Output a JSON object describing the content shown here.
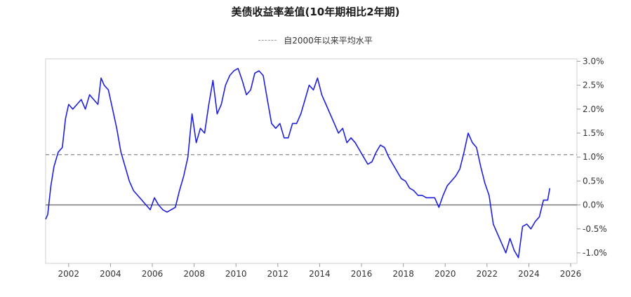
{
  "chart_data": {
    "type": "line",
    "title": "美债收益率差值(10年期相比2年期)",
    "legend": {
      "position": "top-center",
      "entries": [
        {
          "label": "自2000年以来平均水平",
          "style": "dashed",
          "color": "#9a9a9a"
        }
      ]
    },
    "xlabel": "",
    "ylabel": "",
    "x_ticks": [
      "2002",
      "2004",
      "2006",
      "2008",
      "2010",
      "2012",
      "2014",
      "2016",
      "2018",
      "2020",
      "2022",
      "2024",
      "2026"
    ],
    "y_ticks": [
      "3.0%",
      "2.5%",
      "2.0%",
      "1.5%",
      "1.0%",
      "0.5%",
      "0.0%",
      "-0.5%",
      "-1.0%"
    ],
    "xlim": [
      2000.9,
      2026.3
    ],
    "ylim": [
      -1.22,
      3.05
    ],
    "grid": false,
    "zero_line": 0.0,
    "average_line": {
      "name": "自2000年以来平均水平",
      "value": 1.05,
      "color": "#9a9a9a"
    },
    "series": [
      {
        "color": "#1f1fe0",
        "x": [
          2000.9,
          2001.0,
          2001.15,
          2001.3,
          2001.5,
          2001.7,
          2001.85,
          2002.0,
          2002.2,
          2002.4,
          2002.6,
          2002.8,
          2003.0,
          2003.2,
          2003.4,
          2003.55,
          2003.7,
          2003.9,
          2004.1,
          2004.3,
          2004.5,
          2004.7,
          2004.9,
          2005.1,
          2005.3,
          2005.5,
          2005.7,
          2005.9,
          2006.1,
          2006.3,
          2006.5,
          2006.7,
          2006.9,
          2007.1,
          2007.3,
          2007.5,
          2007.7,
          2007.9,
          2008.1,
          2008.3,
          2008.5,
          2008.7,
          2008.9,
          2009.1,
          2009.3,
          2009.5,
          2009.7,
          2009.9,
          2010.1,
          2010.3,
          2010.5,
          2010.7,
          2010.9,
          2011.1,
          2011.3,
          2011.5,
          2011.7,
          2011.9,
          2012.1,
          2012.3,
          2012.5,
          2012.7,
          2012.9,
          2013.1,
          2013.3,
          2013.5,
          2013.7,
          2013.9,
          2014.1,
          2014.3,
          2014.5,
          2014.7,
          2014.9,
          2015.1,
          2015.3,
          2015.5,
          2015.7,
          2015.9,
          2016.1,
          2016.3,
          2016.5,
          2016.7,
          2016.9,
          2017.1,
          2017.3,
          2017.5,
          2017.7,
          2017.9,
          2018.1,
          2018.3,
          2018.5,
          2018.7,
          2018.9,
          2019.1,
          2019.3,
          2019.5,
          2019.7,
          2019.9,
          2020.1,
          2020.3,
          2020.5,
          2020.7,
          2020.9,
          2021.1,
          2021.3,
          2021.5,
          2021.7,
          2021.9,
          2022.1,
          2022.3,
          2022.5,
          2022.7,
          2022.9,
          2023.1,
          2023.3,
          2023.5,
          2023.7,
          2023.9,
          2024.1,
          2024.3,
          2024.5,
          2024.7,
          2024.9,
          2025.0
        ],
        "y": [
          -0.3,
          -0.2,
          0.4,
          0.8,
          1.1,
          1.2,
          1.8,
          2.1,
          2.0,
          2.1,
          2.2,
          2.0,
          2.3,
          2.2,
          2.1,
          2.65,
          2.5,
          2.4,
          2.0,
          1.6,
          1.1,
          0.8,
          0.5,
          0.3,
          0.2,
          0.1,
          0.0,
          -0.1,
          0.15,
          0.0,
          -0.1,
          -0.15,
          -0.1,
          -0.05,
          0.3,
          0.6,
          1.0,
          1.9,
          1.3,
          1.6,
          1.5,
          2.1,
          2.6,
          1.9,
          2.1,
          2.5,
          2.7,
          2.8,
          2.85,
          2.6,
          2.3,
          2.4,
          2.75,
          2.8,
          2.7,
          2.2,
          1.7,
          1.6,
          1.7,
          1.4,
          1.4,
          1.7,
          1.7,
          1.9,
          2.2,
          2.5,
          2.4,
          2.65,
          2.3,
          2.1,
          1.9,
          1.7,
          1.5,
          1.6,
          1.3,
          1.4,
          1.3,
          1.15,
          1.0,
          0.85,
          0.9,
          1.1,
          1.25,
          1.2,
          1.0,
          0.85,
          0.7,
          0.55,
          0.5,
          0.35,
          0.3,
          0.2,
          0.2,
          0.15,
          0.15,
          0.15,
          -0.05,
          0.2,
          0.4,
          0.5,
          0.6,
          0.75,
          1.1,
          1.5,
          1.3,
          1.2,
          0.8,
          0.45,
          0.2,
          -0.4,
          -0.6,
          -0.8,
          -1.0,
          -0.7,
          -0.95,
          -1.1,
          -0.45,
          -0.4,
          -0.5,
          -0.35,
          -0.25,
          0.1,
          0.1,
          0.35
        ]
      }
    ]
  }
}
